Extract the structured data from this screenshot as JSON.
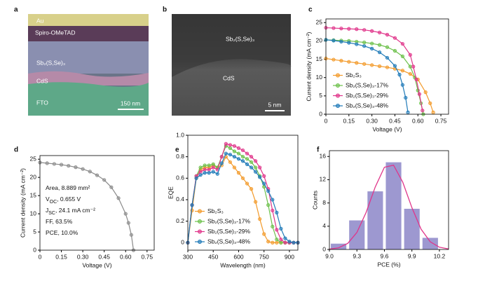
{
  "panels": [
    {
      "label": "a",
      "texts": [
        "Au",
        "Spiro-OMeTAD",
        "Sb₂(S,Se)₃",
        "CdS",
        "FTO",
        "150 nm"
      ]
    },
    {
      "label": "b",
      "texts": [
        "Sb₂(S,Se)₃",
        "CdS",
        "5 nm"
      ]
    }
  ],
  "chart_data": [
    {
      "label": "c",
      "type": "line",
      "xlabel": "Voltage (V)",
      "ylabel": "Current density (mA cm⁻²)",
      "xlim": [
        0,
        0.8
      ],
      "ylim": [
        0,
        26
      ],
      "xticks": [
        0,
        0.15,
        {
          "value": 0.3,
          "label": "0.30"
        },
        0.45,
        {
          "value": 0.6,
          "label": "0.60"
        },
        0.75
      ],
      "yticks": [
        0,
        5,
        10,
        15,
        20,
        25
      ],
      "legend": "lower left",
      "series": [
        {
          "name": "Sb₂S₃",
          "color": "#f39a2a",
          "x": [
            0,
            0.05,
            0.1,
            0.15,
            0.2,
            0.25,
            0.3,
            0.35,
            0.4,
            0.45,
            0.5,
            0.55,
            0.6,
            0.65,
            0.68,
            0.7
          ],
          "values": [
            15.2,
            14.9,
            14.6,
            14.3,
            14.0,
            13.7,
            13.4,
            13.1,
            12.8,
            12.4,
            11.9,
            11.0,
            9.5,
            6.0,
            3.0,
            0.5
          ]
        },
        {
          "name": "Sb₂(S,Se)₃-17%",
          "color": "#6cc04a",
          "x": [
            0,
            0.05,
            0.1,
            0.15,
            0.2,
            0.25,
            0.3,
            0.35,
            0.4,
            0.45,
            0.5,
            0.55,
            0.58,
            0.6,
            0.62,
            0.635
          ],
          "values": [
            20.3,
            20.2,
            20.1,
            20.0,
            19.8,
            19.6,
            19.3,
            18.9,
            18.3,
            17.3,
            15.8,
            13.0,
            10.0,
            6.5,
            3.0,
            0
          ]
        },
        {
          "name": "Sb₂(S,Se)₃-29%",
          "color": "#e0358a",
          "x": [
            0,
            0.05,
            0.1,
            0.15,
            0.2,
            0.25,
            0.3,
            0.35,
            0.4,
            0.45,
            0.5,
            0.55,
            0.57,
            0.59,
            0.61,
            0.63
          ],
          "values": [
            23.6,
            23.5,
            23.4,
            23.3,
            23.2,
            23.0,
            22.7,
            22.3,
            21.7,
            20.8,
            19.2,
            16.2,
            13.0,
            9.5,
            5.5,
            1.0
          ]
        },
        {
          "name": "Sb₂(S,Se)₃-48%",
          "color": "#1f7ab8",
          "x": [
            0,
            0.05,
            0.1,
            0.15,
            0.2,
            0.25,
            0.3,
            0.35,
            0.4,
            0.45,
            0.48,
            0.5,
            0.52,
            0.535
          ],
          "values": [
            20.3,
            20.1,
            19.8,
            19.5,
            19.1,
            18.6,
            17.9,
            16.9,
            15.4,
            13.2,
            10.8,
            8.0,
            4.5,
            0.5
          ]
        }
      ]
    },
    {
      "label": "d",
      "type": "line",
      "xlabel": "Voltage (V)",
      "ylabel": "Current density (mA cm⁻²)",
      "xlim": [
        0,
        0.8
      ],
      "ylim": [
        0,
        26
      ],
      "xticks": [
        0,
        0.15,
        {
          "value": 0.3,
          "label": "0.30"
        },
        0.45,
        {
          "value": 0.6,
          "label": "0.60"
        },
        0.75
      ],
      "yticks": [
        0,
        5,
        10,
        15,
        20,
        25
      ],
      "series": [
        {
          "color": "#8a8a8a",
          "x": [
            0,
            0.05,
            0.1,
            0.15,
            0.2,
            0.25,
            0.3,
            0.35,
            0.4,
            0.45,
            0.5,
            0.55,
            0.6,
            0.62,
            0.64,
            0.655
          ],
          "values": [
            24.1,
            23.9,
            23.7,
            23.5,
            23.2,
            22.8,
            22.3,
            21.6,
            20.6,
            19.3,
            17.3,
            14.3,
            10.0,
            7.5,
            4.2,
            0
          ]
        }
      ],
      "annotations": [
        [
          {
            "text": "Area, 8.889 mm²"
          }
        ],
        [
          {
            "text": "V"
          },
          {
            "text": "OC",
            "sub": true
          },
          {
            "text": ", 0.655 V"
          }
        ],
        [
          {
            "text": "J"
          },
          {
            "text": "SC",
            "sub": true
          },
          {
            "text": ", 24.1 mA cm⁻²"
          }
        ],
        [
          {
            "text": "FF, 63.5%"
          }
        ],
        [
          {
            "text": "PCE, 10.0%"
          }
        ]
      ]
    },
    {
      "label": "e",
      "type": "line",
      "xlabel": "Wavelength (nm)",
      "ylabel": "EQE",
      "xlim": [
        300,
        950
      ],
      "ylim": [
        -0.07,
        1.0
      ],
      "xticks": [
        300,
        450,
        600,
        750,
        900
      ],
      "yticks": [
        0,
        0.2,
        0.4,
        0.6,
        0.8,
        {
          "value": 1,
          "label": "1.0"
        }
      ],
      "legend": "lower left",
      "x": [
        300,
        325,
        350,
        375,
        400,
        425,
        450,
        475,
        500,
        525,
        550,
        575,
        600,
        625,
        650,
        675,
        700,
        725,
        750,
        775,
        800,
        825,
        850,
        875,
        900,
        925,
        950
      ],
      "series": [
        {
          "name": "Sb₂S₃",
          "color": "#f39a2a",
          "values": [
            0,
            0.3,
            0.6,
            0.68,
            0.7,
            0.7,
            0.72,
            0.7,
            0.72,
            0.8,
            0.75,
            0.7,
            0.65,
            0.6,
            0.55,
            0.5,
            0.38,
            0.22,
            0.08,
            0.01,
            0,
            0,
            0,
            0,
            0,
            0,
            0
          ]
        },
        {
          "name": "Sb₂(S,Se)₃-17%",
          "color": "#6cc04a",
          "values": [
            0,
            0.35,
            0.62,
            0.7,
            0.72,
            0.72,
            0.73,
            0.7,
            0.8,
            0.9,
            0.88,
            0.85,
            0.83,
            0.8,
            0.78,
            0.75,
            0.7,
            0.62,
            0.52,
            0.35,
            0.15,
            0.03,
            0,
            0,
            0,
            0,
            0
          ]
        },
        {
          "name": "Sb₂(S,Se)₃-29%",
          "color": "#e0358a",
          "values": [
            0,
            0.35,
            0.62,
            0.66,
            0.68,
            0.68,
            0.7,
            0.68,
            0.8,
            0.92,
            0.91,
            0.9,
            0.88,
            0.86,
            0.83,
            0.8,
            0.76,
            0.7,
            0.62,
            0.5,
            0.3,
            0.12,
            0.03,
            0,
            0,
            0,
            0
          ]
        },
        {
          "name": "Sb₂(S,Se)₃-48%",
          "color": "#1f7ab8",
          "values": [
            0,
            0.35,
            0.6,
            0.63,
            0.65,
            0.65,
            0.66,
            0.64,
            0.74,
            0.83,
            0.82,
            0.8,
            0.78,
            0.76,
            0.73,
            0.7,
            0.66,
            0.61,
            0.55,
            0.48,
            0.4,
            0.28,
            0.13,
            0.04,
            0.01,
            0,
            0
          ]
        }
      ]
    },
    {
      "label": "f",
      "type": "histogram",
      "xlabel": "PCE (%)",
      "ylabel": "Counts",
      "xlim": [
        9.0,
        10.3
      ],
      "ylim": [
        0,
        17
      ],
      "xticks": [
        {
          "value": 9,
          "label": "9.0"
        },
        9.3,
        9.6,
        9.9,
        10.2
      ],
      "yticks": [
        0,
        4,
        8,
        12,
        16
      ],
      "color": "#9d98d0",
      "bins": [
        9.0,
        9.2,
        9.4,
        9.6,
        9.8,
        10.0,
        10.2
      ],
      "counts": [
        1,
        5,
        10,
        15,
        7,
        2
      ],
      "fit": {
        "color": "#e0358a",
        "x": [
          9.0,
          9.1,
          9.2,
          9.3,
          9.4,
          9.5,
          9.6,
          9.7,
          9.8,
          9.9,
          10.0,
          10.1,
          10.2,
          10.3
        ],
        "values": [
          0.06,
          0.29,
          1.05,
          2.93,
          6.36,
          10.75,
          14.15,
          14.5,
          11.59,
          7.2,
          3.49,
          1.32,
          0.39,
          0.09
        ]
      }
    }
  ]
}
